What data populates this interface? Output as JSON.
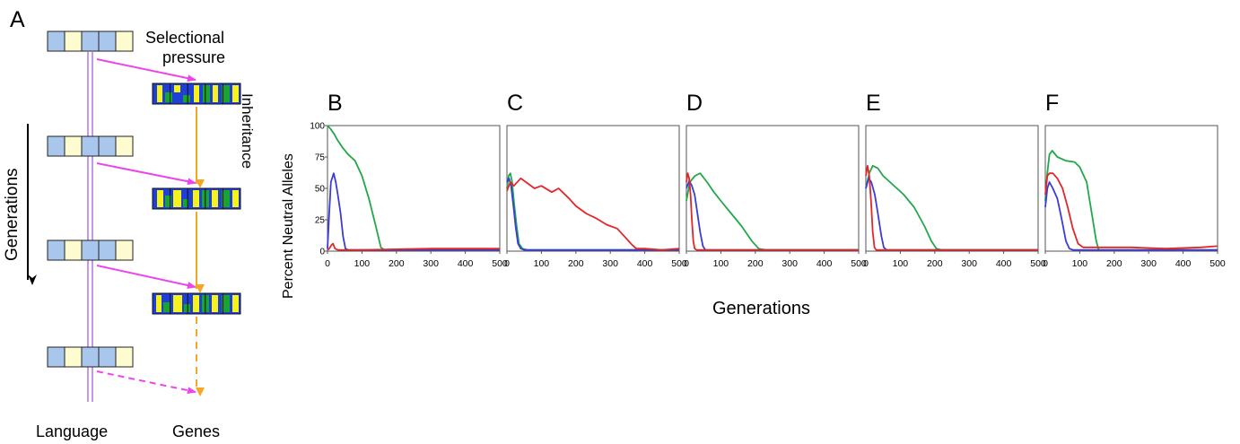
{
  "panel_a": {
    "label": "A",
    "selection_label_line1": "Selectional",
    "selection_label_line2": "pressure",
    "inheritance_label": "Inheritance",
    "generations_label": "Generations",
    "language_label": "Language",
    "genes_label": "Genes",
    "colors": {
      "language_blue": "#a9c7ec",
      "language_cream": "#fdfbd0",
      "gene_blue": "#1f3fd6",
      "gene_yellow": "#f6f21e",
      "gene_green": "#18a431",
      "selection_arrow": "#ee44ee",
      "inheritance_arrow": "#f5a623",
      "language_line": "#b77ee6"
    }
  },
  "shared": {
    "ylabel": "Percent Neutral Alleles",
    "xlabel": "Generations"
  },
  "chart_data": [
    {
      "type": "line",
      "label": "B",
      "xlim": [
        0,
        500
      ],
      "ylim": [
        0,
        100
      ],
      "xticks": [
        "0",
        "100",
        "200",
        "300",
        "400",
        "500"
      ],
      "yticks": [
        "0",
        "25",
        "50",
        "75",
        "100"
      ],
      "series": [
        {
          "color": "#21a84a",
          "points": [
            [
              0,
              100
            ],
            [
              10,
              97
            ],
            [
              20,
              93
            ],
            [
              30,
              88
            ],
            [
              45,
              82
            ],
            [
              60,
              77
            ],
            [
              80,
              72
            ],
            [
              100,
              60
            ],
            [
              120,
              42
            ],
            [
              140,
              20
            ],
            [
              155,
              3
            ],
            [
              165,
              1
            ],
            [
              300,
              1
            ],
            [
              500,
              1
            ]
          ]
        },
        {
          "color": "#3b3bd9",
          "points": [
            [
              0,
              2
            ],
            [
              5,
              30
            ],
            [
              10,
              55
            ],
            [
              18,
              62
            ],
            [
              24,
              55
            ],
            [
              30,
              45
            ],
            [
              38,
              30
            ],
            [
              45,
              12
            ],
            [
              52,
              2
            ],
            [
              60,
              1
            ],
            [
              500,
              1
            ]
          ]
        },
        {
          "color": "#e2262a",
          "points": [
            [
              0,
              1
            ],
            [
              5,
              2
            ],
            [
              12,
              5
            ],
            [
              16,
              6
            ],
            [
              22,
              2
            ],
            [
              30,
              1
            ],
            [
              100,
              1
            ],
            [
              300,
              2
            ],
            [
              500,
              2
            ]
          ]
        }
      ]
    },
    {
      "type": "line",
      "label": "C",
      "xlim": [
        0,
        500
      ],
      "ylim": [
        0,
        100
      ],
      "xticks": [
        "0",
        "100",
        "200",
        "300",
        "400",
        "500"
      ],
      "yticks": [
        "0",
        "25",
        "50",
        "75",
        "100"
      ],
      "series": [
        {
          "color": "#21a84a",
          "points": [
            [
              0,
              50
            ],
            [
              5,
              60
            ],
            [
              10,
              62
            ],
            [
              15,
              55
            ],
            [
              20,
              40
            ],
            [
              28,
              20
            ],
            [
              35,
              6
            ],
            [
              45,
              2
            ],
            [
              60,
              1
            ],
            [
              500,
              1
            ]
          ]
        },
        {
          "color": "#3b3bd9",
          "points": [
            [
              0,
              55
            ],
            [
              6,
              58
            ],
            [
              12,
              52
            ],
            [
              18,
              38
            ],
            [
              25,
              20
            ],
            [
              32,
              6
            ],
            [
              40,
              2
            ],
            [
              50,
              1
            ],
            [
              500,
              1
            ]
          ]
        },
        {
          "color": "#e2262a",
          "points": [
            [
              0,
              48
            ],
            [
              10,
              55
            ],
            [
              20,
              52
            ],
            [
              40,
              58
            ],
            [
              60,
              54
            ],
            [
              80,
              50
            ],
            [
              100,
              52
            ],
            [
              130,
              47
            ],
            [
              150,
              50
            ],
            [
              180,
              42
            ],
            [
              200,
              36
            ],
            [
              230,
              30
            ],
            [
              260,
              26
            ],
            [
              290,
              21
            ],
            [
              320,
              18
            ],
            [
              340,
              12
            ],
            [
              360,
              6
            ],
            [
              375,
              2
            ],
            [
              400,
              2
            ],
            [
              450,
              1
            ],
            [
              500,
              2
            ]
          ]
        }
      ]
    },
    {
      "type": "line",
      "label": "D",
      "xlim": [
        0,
        500
      ],
      "ylim": [
        0,
        100
      ],
      "xticks": [
        "0",
        "100",
        "200",
        "300",
        "400",
        "500"
      ],
      "yticks": [
        "0",
        "25",
        "50",
        "75",
        "100"
      ],
      "series": [
        {
          "color": "#21a84a",
          "points": [
            [
              0,
              40
            ],
            [
              10,
              55
            ],
            [
              25,
              60
            ],
            [
              40,
              62
            ],
            [
              60,
              55
            ],
            [
              80,
              47
            ],
            [
              100,
              40
            ],
            [
              130,
              30
            ],
            [
              160,
              20
            ],
            [
              190,
              8
            ],
            [
              210,
              2
            ],
            [
              230,
              1
            ],
            [
              500,
              1
            ]
          ]
        },
        {
          "color": "#3b3bd9",
          "points": [
            [
              0,
              50
            ],
            [
              8,
              56
            ],
            [
              16,
              52
            ],
            [
              24,
              45
            ],
            [
              32,
              30
            ],
            [
              40,
              15
            ],
            [
              48,
              4
            ],
            [
              55,
              1
            ],
            [
              500,
              1
            ]
          ]
        },
        {
          "color": "#e2262a",
          "points": [
            [
              0,
              55
            ],
            [
              4,
              62
            ],
            [
              8,
              58
            ],
            [
              12,
              45
            ],
            [
              16,
              25
            ],
            [
              20,
              8
            ],
            [
              24,
              2
            ],
            [
              30,
              1
            ],
            [
              500,
              1
            ]
          ]
        }
      ]
    },
    {
      "type": "line",
      "label": "E",
      "xlim": [
        0,
        500
      ],
      "ylim": [
        0,
        100
      ],
      "xticks": [
        "0",
        "100",
        "200",
        "300",
        "400",
        "500"
      ],
      "yticks": [
        "0",
        "25",
        "50",
        "75",
        "100"
      ],
      "series": [
        {
          "color": "#21a84a",
          "points": [
            [
              0,
              50
            ],
            [
              10,
              62
            ],
            [
              20,
              68
            ],
            [
              35,
              66
            ],
            [
              50,
              60
            ],
            [
              70,
              55
            ],
            [
              90,
              50
            ],
            [
              110,
              45
            ],
            [
              140,
              35
            ],
            [
              170,
              20
            ],
            [
              190,
              8
            ],
            [
              205,
              2
            ],
            [
              220,
              1
            ],
            [
              500,
              1
            ]
          ]
        },
        {
          "color": "#3b3bd9",
          "points": [
            [
              0,
              50
            ],
            [
              8,
              58
            ],
            [
              16,
              55
            ],
            [
              26,
              45
            ],
            [
              35,
              30
            ],
            [
              45,
              12
            ],
            [
              52,
              3
            ],
            [
              60,
              1
            ],
            [
              500,
              1
            ]
          ]
        },
        {
          "color": "#e2262a",
          "points": [
            [
              0,
              60
            ],
            [
              5,
              68
            ],
            [
              10,
              60
            ],
            [
              15,
              40
            ],
            [
              20,
              15
            ],
            [
              25,
              3
            ],
            [
              30,
              1
            ],
            [
              500,
              1
            ]
          ]
        }
      ]
    },
    {
      "type": "line",
      "label": "F",
      "xlim": [
        0,
        500
      ],
      "ylim": [
        0,
        100
      ],
      "xticks": [
        "0",
        "100",
        "200",
        "300",
        "400",
        "500"
      ],
      "yticks": [
        "0",
        "25",
        "50",
        "75",
        "100"
      ],
      "series": [
        {
          "color": "#21a84a",
          "points": [
            [
              0,
              40
            ],
            [
              5,
              60
            ],
            [
              12,
              77
            ],
            [
              20,
              80
            ],
            [
              35,
              75
            ],
            [
              60,
              72
            ],
            [
              85,
              71
            ],
            [
              100,
              67
            ],
            [
              120,
              55
            ],
            [
              135,
              30
            ],
            [
              148,
              8
            ],
            [
              155,
              1
            ],
            [
              500,
              1
            ]
          ]
        },
        {
          "color": "#3b3bd9",
          "points": [
            [
              0,
              35
            ],
            [
              6,
              50
            ],
            [
              12,
              55
            ],
            [
              22,
              50
            ],
            [
              35,
              42
            ],
            [
              48,
              25
            ],
            [
              60,
              8
            ],
            [
              70,
              2
            ],
            [
              80,
              1
            ],
            [
              500,
              1
            ]
          ]
        },
        {
          "color": "#e2262a",
          "points": [
            [
              0,
              45
            ],
            [
              6,
              60
            ],
            [
              12,
              62
            ],
            [
              22,
              62
            ],
            [
              35,
              58
            ],
            [
              50,
              50
            ],
            [
              65,
              35
            ],
            [
              80,
              18
            ],
            [
              95,
              6
            ],
            [
              110,
              3
            ],
            [
              150,
              3
            ],
            [
              250,
              3
            ],
            [
              350,
              2
            ],
            [
              450,
              3
            ],
            [
              500,
              4
            ]
          ]
        }
      ]
    }
  ]
}
